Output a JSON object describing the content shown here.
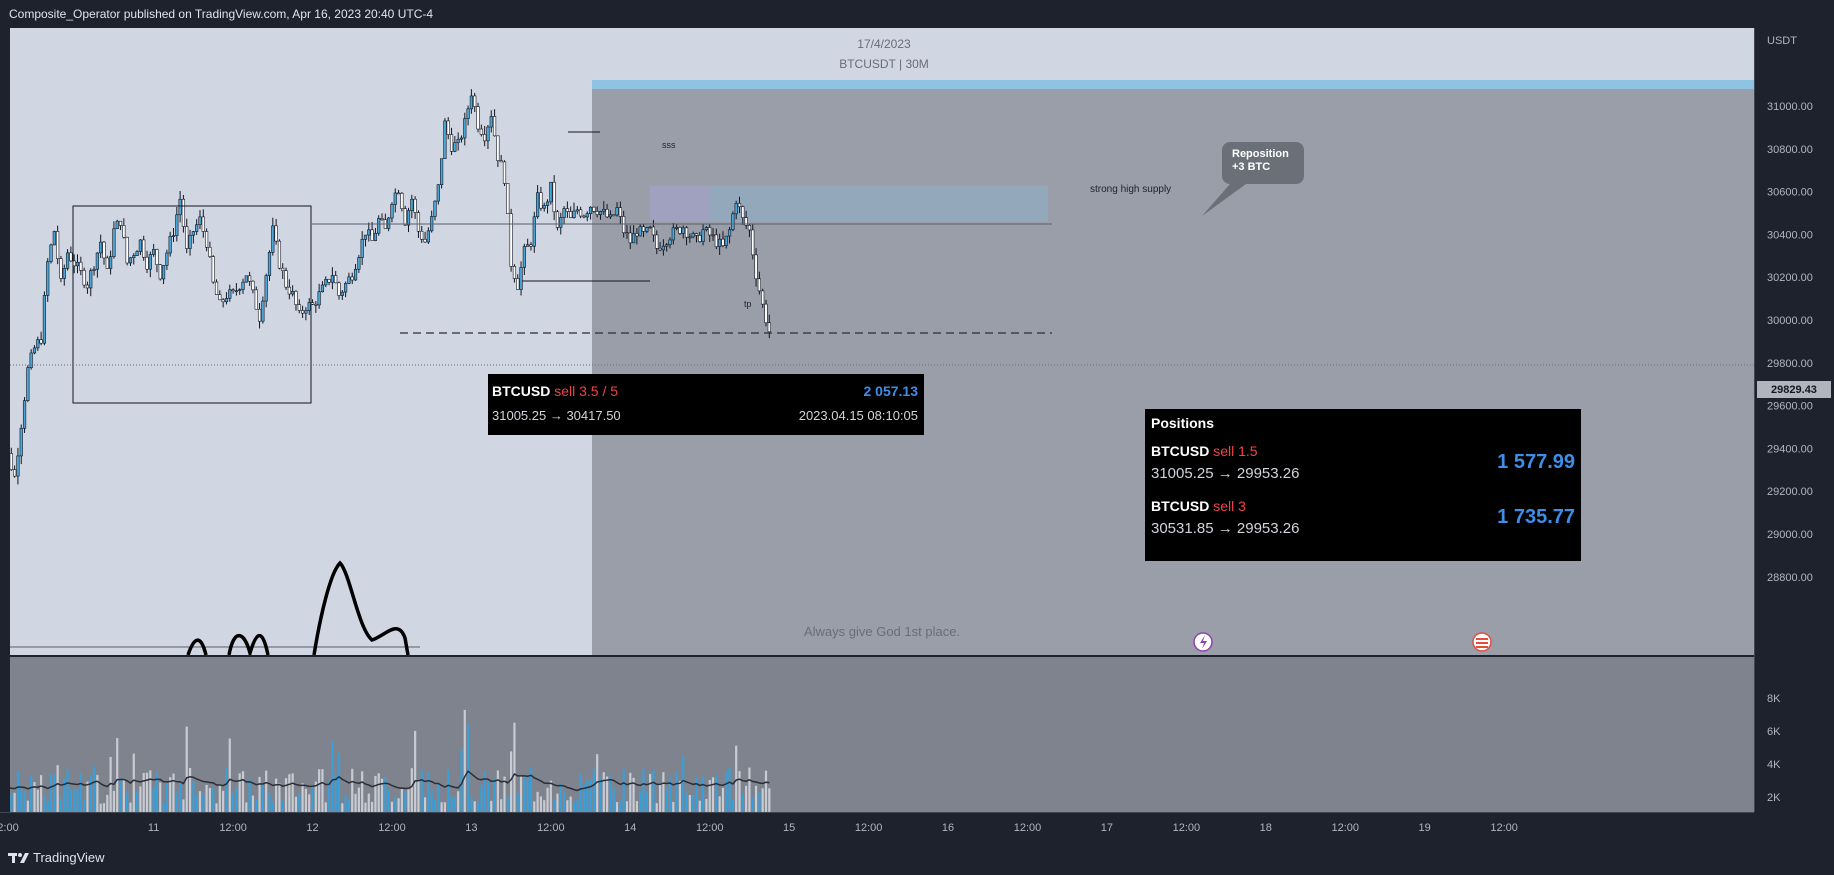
{
  "header": {
    "published": "Composite_Operator published on TradingView.com, Apr 16, 2023 20:40 UTC-4"
  },
  "chart": {
    "date": "17/4/2023",
    "symbol": "BTCUSDT | 30M",
    "currency": "USDT",
    "last_price": "29829.43",
    "watermark": "Always give God 1st place."
  },
  "chart_data": {
    "type": "candlestick",
    "symbol": "BTCUSDT",
    "interval": "30M",
    "ylim": [
      28800,
      31050
    ],
    "y_ticks": [
      "31000.00",
      "30800.00",
      "30600.00",
      "30400.00",
      "30200.00",
      "30000.00",
      "29800.00",
      "29600.00",
      "29400.00",
      "29200.00",
      "29000.00",
      "28800.00"
    ],
    "y_tick_values": [
      31000,
      30800,
      30600,
      30400,
      30200,
      30000,
      29800,
      29600,
      29400,
      29200,
      29000,
      28800
    ],
    "volume_ticks": [
      "8K",
      "6K",
      "4K",
      "2K"
    ],
    "volume_tick_values": [
      8000,
      6000,
      4000,
      2000
    ],
    "x_ticks": [
      "2:00",
      "11",
      "12:00",
      "12",
      "12:00",
      "13",
      "12:00",
      "14",
      "12:00",
      "15",
      "12:00",
      "16",
      "12:00",
      "17",
      "12:00",
      "18",
      "12:00",
      "19",
      "12:00"
    ],
    "x_tick_times": [
      2,
      24,
      36,
      48,
      60,
      72,
      84,
      96,
      108,
      120,
      132,
      144,
      156,
      168,
      180,
      192,
      204,
      216,
      228
    ],
    "close_path": [
      [
        0,
        28900
      ],
      [
        1,
        29100
      ],
      [
        2,
        29250
      ],
      [
        3,
        29150
      ],
      [
        4,
        29400
      ],
      [
        5,
        29650
      ],
      [
        6,
        29750
      ],
      [
        7,
        29800
      ],
      [
        8,
        30150
      ],
      [
        9,
        30300
      ],
      [
        10,
        30050
      ],
      [
        11,
        30200
      ],
      [
        12,
        30150
      ],
      [
        13,
        30100
      ],
      [
        14,
        30050
      ],
      [
        15,
        30150
      ],
      [
        16,
        30250
      ],
      [
        17,
        30100
      ],
      [
        18,
        30300
      ],
      [
        19,
        30350
      ],
      [
        20,
        30150
      ],
      [
        21,
        30200
      ],
      [
        22,
        30250
      ],
      [
        23,
        30150
      ],
      [
        24,
        30200
      ],
      [
        25,
        30100
      ],
      [
        26,
        30200
      ],
      [
        27,
        30300
      ],
      [
        28,
        30450
      ],
      [
        29,
        30200
      ],
      [
        30,
        30300
      ],
      [
        31,
        30350
      ],
      [
        32,
        30250
      ],
      [
        33,
        30050
      ],
      [
        34,
        29950
      ],
      [
        35,
        30000
      ],
      [
        36,
        30000
      ],
      [
        37,
        30050
      ],
      [
        38,
        30100
      ],
      [
        39,
        30000
      ],
      [
        40,
        29900
      ],
      [
        41,
        30100
      ],
      [
        42,
        30300
      ],
      [
        43,
        30150
      ],
      [
        44,
        30050
      ],
      [
        45,
        30000
      ],
      [
        46,
        29900
      ],
      [
        47,
        29950
      ],
      [
        48,
        29950
      ],
      [
        49,
        30000
      ],
      [
        50,
        30050
      ],
      [
        51,
        30100
      ],
      [
        52,
        30000
      ],
      [
        53,
        30050
      ],
      [
        54,
        30100
      ],
      [
        55,
        30200
      ],
      [
        56,
        30300
      ],
      [
        57,
        30250
      ],
      [
        58,
        30350
      ],
      [
        59,
        30300
      ],
      [
        60,
        30450
      ],
      [
        61,
        30500
      ],
      [
        62,
        30350
      ],
      [
        63,
        30450
      ],
      [
        64,
        30300
      ],
      [
        65,
        30250
      ],
      [
        66,
        30350
      ],
      [
        67,
        30500
      ],
      [
        68,
        30800
      ],
      [
        69,
        30700
      ],
      [
        70,
        30700
      ],
      [
        71,
        30800
      ],
      [
        72,
        30950
      ],
      [
        73,
        30800
      ],
      [
        74,
        30750
      ],
      [
        75,
        30850
      ],
      [
        76,
        30650
      ],
      [
        77,
        30550
      ],
      [
        78,
        30150
      ],
      [
        79,
        30050
      ],
      [
        80,
        30200
      ],
      [
        81,
        30250
      ],
      [
        82,
        30450
      ],
      [
        83,
        30400
      ],
      [
        84,
        30500
      ],
      [
        85,
        30300
      ],
      [
        86,
        30400
      ],
      [
        87,
        30350
      ],
      [
        88,
        30400
      ],
      [
        89,
        30380
      ],
      [
        90,
        30420
      ],
      [
        91,
        30400
      ],
      [
        92,
        30380
      ],
      [
        93,
        30350
      ],
      [
        94,
        30400
      ],
      [
        95,
        30300
      ],
      [
        96,
        30250
      ],
      [
        97,
        30300
      ],
      [
        98,
        30280
      ],
      [
        99,
        30300
      ],
      [
        100,
        30220
      ],
      [
        101,
        30250
      ],
      [
        102,
        30280
      ],
      [
        103,
        30300
      ],
      [
        104,
        30320
      ],
      [
        105,
        30280
      ],
      [
        106,
        30250
      ],
      [
        107,
        30300
      ],
      [
        108,
        30280
      ],
      [
        109,
        30250
      ],
      [
        110,
        30220
      ],
      [
        111,
        30300
      ],
      [
        112,
        30450
      ],
      [
        113,
        30350
      ],
      [
        114,
        30300
      ],
      [
        115,
        30100
      ],
      [
        116,
        29950
      ],
      [
        117,
        29830
      ]
    ],
    "annotations": [
      "sss",
      "tp",
      "strong high supply",
      "Reposition\n+3 BTC"
    ]
  },
  "trade_box": {
    "ticker": "BTCUSD",
    "side": "sell 3.5 / 5",
    "pnl": "2 057.13",
    "route": "31005.25 → 30417.50",
    "timestamp": "2023.04.15 08:10:05"
  },
  "positions": {
    "title": "Positions",
    "items": [
      {
        "ticker": "BTCUSD",
        "side": "sell 1.5",
        "route": "31005.25 → 29953.26",
        "pnl": "1 577.99"
      },
      {
        "ticker": "BTCUSD",
        "side": "sell 3",
        "route": "30531.85 → 29953.26",
        "pnl": "1 735.77"
      }
    ]
  },
  "annotations": {
    "sss": "sss",
    "tp": "tp",
    "supply": "strong high supply",
    "callout_line1": "Reposition",
    "callout_line2": "+3 BTC"
  },
  "footer": {
    "brand": "TradingView"
  },
  "colors": {
    "bg_chart": "#d1d6e3",
    "shade": "#9a9ea8",
    "up_candle": "#4aa6d6",
    "down_candle": "#ffffff",
    "sell": "#f0444a",
    "pnl": "#3d8ee8"
  }
}
